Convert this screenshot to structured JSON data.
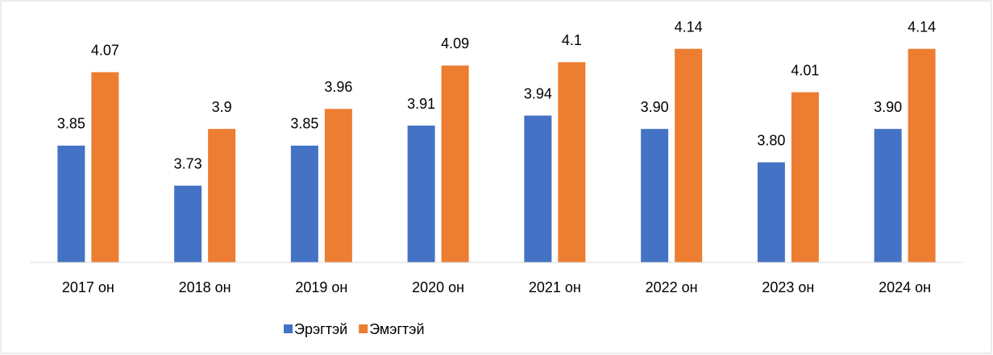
{
  "chart_data": {
    "type": "bar",
    "categories": [
      "2017 он",
      "2018 он",
      "2019 он",
      "2020 он",
      "2021 он",
      "2022 он",
      "2023 он",
      "2024 он"
    ],
    "series": [
      {
        "name": "Эрэгтэй",
        "color": "#4472c4",
        "values": [
          3.85,
          3.73,
          3.85,
          3.91,
          3.94,
          3.9,
          3.8,
          3.9
        ],
        "value_labels": [
          "3.85",
          "3.73",
          "3.85",
          "3.91",
          "3.94",
          "3.90",
          "3.80",
          "3.90"
        ]
      },
      {
        "name": "Эмэгтэй",
        "color": "#ed7d31",
        "values": [
          4.07,
          3.9,
          3.96,
          4.09,
          4.1,
          4.14,
          4.01,
          4.14
        ]
      }
    ],
    "ylim": [
      3.5,
      4.2
    ],
    "legend": "bottom"
  }
}
